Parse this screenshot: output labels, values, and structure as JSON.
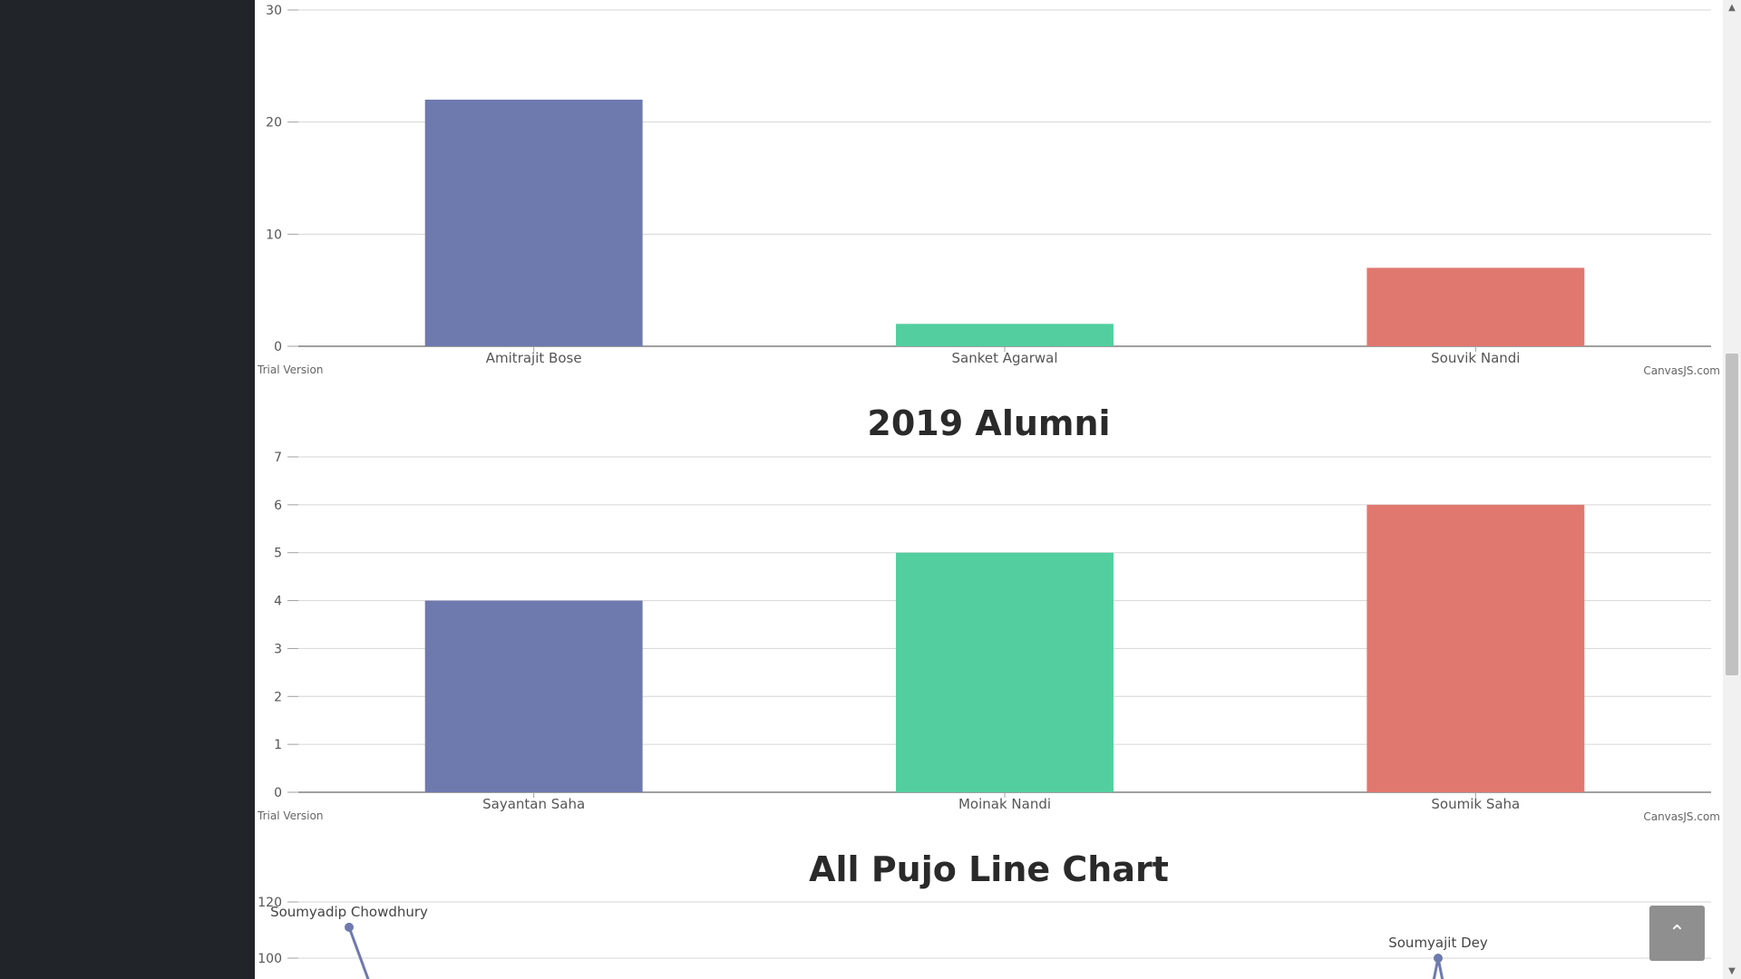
{
  "colors": {
    "sidebar": "#212429",
    "series": [
      "#6e79ae",
      "#52ce9f",
      "#e0786f"
    ],
    "back_to_top": "#8f8f8f"
  },
  "watermark": {
    "left": "Trial Version",
    "right": "CanvasJS.com"
  },
  "back_to_top": {
    "icon": "chevron-up-icon",
    "glyph": "⌃"
  },
  "scrollbar": {
    "up": "▲",
    "down": "▼"
  },
  "chart_data": [
    {
      "type": "bar",
      "title": "",
      "categories": [
        "Amitrajit Bose",
        "Sanket Agarwal",
        "Souvik Nandi"
      ],
      "values": [
        22,
        2,
        7
      ],
      "ylim": [
        0,
        30
      ],
      "yticks": [
        0,
        10,
        20,
        30
      ],
      "grid": true,
      "xlabel": "",
      "ylabel": ""
    },
    {
      "type": "bar",
      "title": "2019 Alumni",
      "categories": [
        "Sayantan Saha",
        "Moinak Nandi",
        "Soumik Saha"
      ],
      "values": [
        4,
        5,
        6
      ],
      "ylim": [
        0,
        7
      ],
      "yticks": [
        0,
        1,
        2,
        3,
        4,
        5,
        6,
        7
      ],
      "grid": true,
      "xlabel": "",
      "ylabel": ""
    },
    {
      "type": "line",
      "title": "All Pujo Line Chart",
      "yticks_visible": [
        100,
        120
      ],
      "grid": true,
      "point_labels": [
        {
          "label": "Soumyadip Chowdhury",
          "y": 111
        },
        {
          "label": "Soumyajit Dey",
          "y": 100
        }
      ],
      "xlabel": "",
      "ylabel": ""
    }
  ]
}
